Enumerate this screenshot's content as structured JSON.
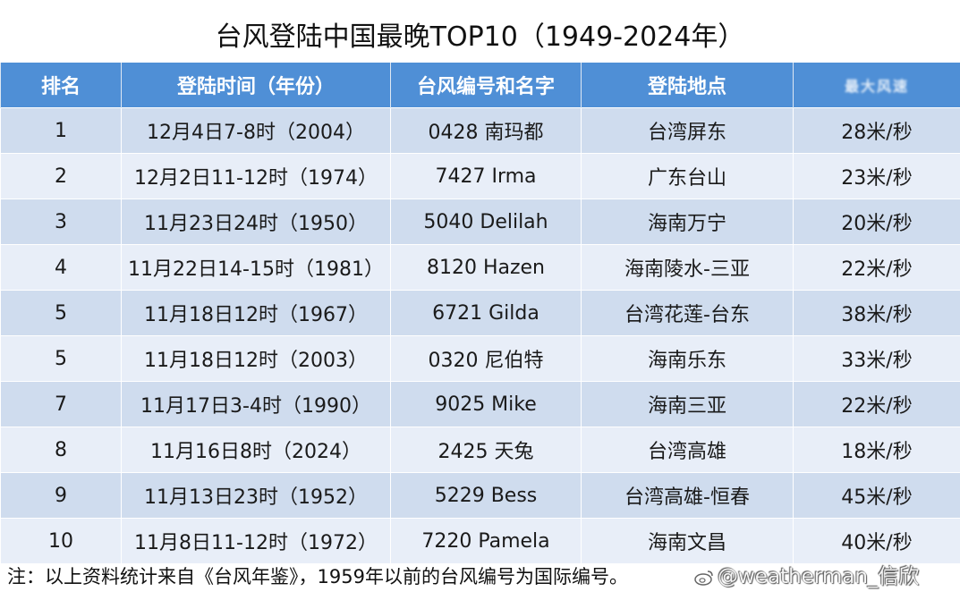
{
  "title": "台风登陆中国最晚TOP10（1949-2024年）",
  "table": {
    "headers": [
      "排名",
      "登陆时间（年份）",
      "台风编号和名字",
      "登陆地点",
      "最大风速"
    ],
    "rows": [
      [
        "1",
        "12月4日7-8时（2004）",
        "0428 南玛都",
        "台湾屏东",
        "28米/秒"
      ],
      [
        "2",
        "12月2日11-12时（1974）",
        "7427 Irma",
        "广东台山",
        "23米/秒"
      ],
      [
        "3",
        "11月23日24时（1950）",
        "5040 Delilah",
        "海南万宁",
        "20米/秒"
      ],
      [
        "4",
        "11月22日14-15时（1981）",
        "8120 Hazen",
        "海南陵水-三亚",
        "22米/秒"
      ],
      [
        "5",
        "11月18日12时（1967）",
        "6721 Gilda",
        "台湾花莲-台东",
        "38米/秒"
      ],
      [
        "5",
        "11月18日12时（2003）",
        "0320 尼伯特",
        "海南乐东",
        "33米/秒"
      ],
      [
        "7",
        "11月17日3-4时（1990）",
        "9025 Mike",
        "海南三亚",
        "22米/秒"
      ],
      [
        "8",
        "11月16日8时（2024）",
        "2425 天兔",
        "台湾高雄",
        "18米/秒"
      ],
      [
        "9",
        "11月13日23时（1952）",
        "5229 Bess",
        "台湾高雄-恒春",
        "45米/秒"
      ],
      [
        "10",
        "11月8日11-12时（1972）",
        "7220 Pamela",
        "海南文昌",
        "40米/秒"
      ]
    ]
  },
  "footnote": "注：以上资料统计来自《台风年鉴》，1959年以前的台风编号为国际编号。",
  "watermark": "@weatherman_信欣",
  "colors": {
    "header_bg": "#4f8fd6",
    "row_dark": "#cfdcee",
    "row_light": "#e8eef8"
  }
}
